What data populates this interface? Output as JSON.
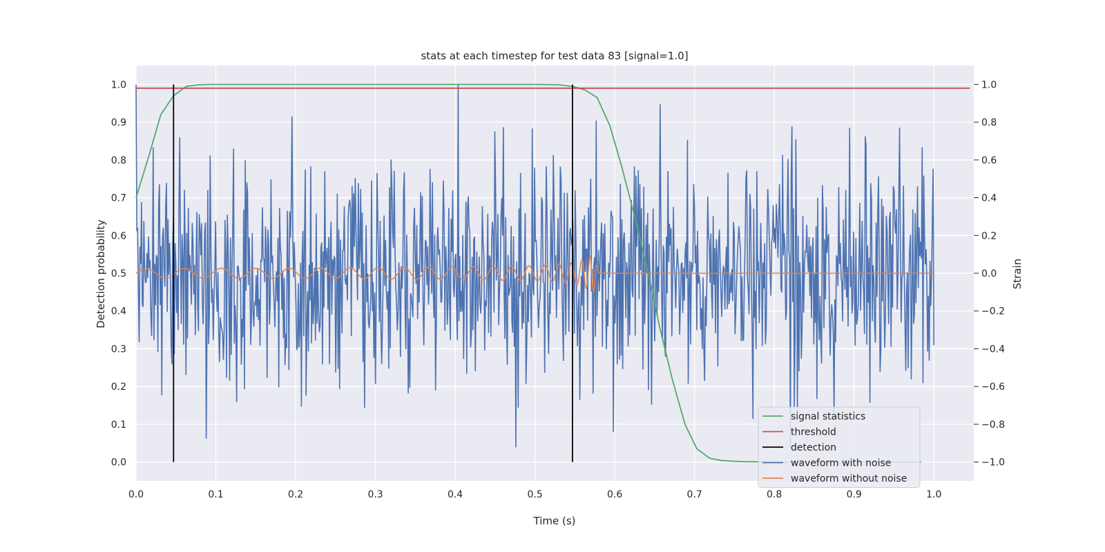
{
  "chart_data": {
    "type": "line",
    "title": "stats at each timestep for test data 83 [signal=1.0]",
    "xlabel": "Time (s)",
    "ylabel_left": "Detection probability",
    "ylabel_right": "Strain",
    "xlim": [
      0.0,
      1.05
    ],
    "ylim_left": [
      -0.05,
      1.05
    ],
    "ylim_right": [
      -1.1,
      1.1
    ],
    "x_ticks": [
      "0.0",
      "0.1",
      "0.2",
      "0.3",
      "0.4",
      "0.5",
      "0.6",
      "0.7",
      "0.8",
      "0.9",
      "1.0"
    ],
    "y_ticks_left": [
      "0.0",
      "0.1",
      "0.2",
      "0.3",
      "0.4",
      "0.5",
      "0.6",
      "0.7",
      "0.8",
      "0.9",
      "1.0"
    ],
    "y_ticks_right": [
      "−1.0",
      "−0.8",
      "−0.6",
      "−0.4",
      "−0.2",
      "0.0",
      "0.2",
      "0.4",
      "0.6",
      "0.8",
      "1.0"
    ],
    "grid": true,
    "legend_position": "lower-right",
    "series": [
      {
        "name": "signal statistics",
        "axis": "left",
        "color": "#55a868",
        "x": [
          0.0,
          0.016,
          0.031,
          0.047,
          0.063,
          0.078,
          0.094,
          0.2,
          0.3,
          0.4,
          0.5,
          0.531,
          0.547,
          0.563,
          0.578,
          0.594,
          0.609,
          0.625,
          0.641,
          0.656,
          0.672,
          0.688,
          0.703,
          0.719,
          0.734,
          0.75,
          0.766,
          0.8,
          0.9,
          0.984
        ],
        "y": [
          0.7,
          0.81,
          0.92,
          0.97,
          0.995,
          0.999,
          1.0,
          1.0,
          1.0,
          1.0,
          1.0,
          0.999,
          0.995,
          0.985,
          0.965,
          0.89,
          0.78,
          0.65,
          0.51,
          0.36,
          0.22,
          0.1,
          0.035,
          0.01,
          0.004,
          0.002,
          0.001,
          0.0,
          0.0,
          0.0
        ]
      },
      {
        "name": "threshold",
        "axis": "left",
        "color": "#c44e52",
        "x": [
          0.0,
          1.045
        ],
        "y": [
          0.99,
          0.99
        ]
      },
      {
        "name": "detection",
        "axis": "left",
        "color": "#000000",
        "vlines_x": [
          0.047,
          0.547
        ],
        "ymin": 0.0,
        "ymax": 1.0
      },
      {
        "name": "waveform with noise",
        "axis": "right",
        "color": "#4c72b0",
        "x_start": 0.0,
        "x_end": 1.0,
        "samples": 1024,
        "approx_std": 0.3,
        "range": [
          -1.0,
          1.0
        ]
      },
      {
        "name": "waveform without noise",
        "axis": "right",
        "color": "#dd8452",
        "description_points": {
          "x": [
            0.0,
            0.1,
            0.2,
            0.3,
            0.4,
            0.5,
            0.55,
            0.575,
            0.58,
            1.0
          ],
          "amplitude": [
            0.025,
            0.026,
            0.027,
            0.03,
            0.033,
            0.04,
            0.055,
            0.1,
            0.0,
            0.0
          ],
          "frequency_hz": [
            20,
            22,
            25,
            29,
            36,
            48,
            70,
            120,
            0,
            0
          ]
        }
      }
    ]
  }
}
